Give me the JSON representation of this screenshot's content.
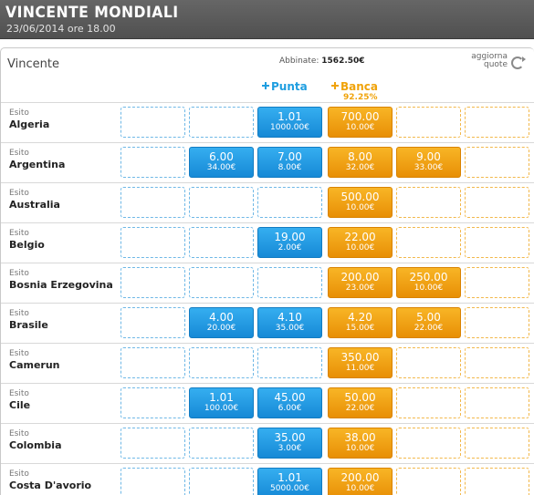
{
  "header": {
    "title": "VINCENTE MONDIALI",
    "subtitle": "23/06/2014 ore 18.00"
  },
  "market": {
    "label": "Vincente",
    "matched_label": "Abbinate:",
    "matched_value": "1562.50€",
    "refresh_label_line1": "aggiorna",
    "refresh_label_line2": "quote"
  },
  "columns": {
    "back_label": "Punta",
    "lay_label": "Banca",
    "lay_percent": "92.25%"
  },
  "colors": {
    "back": "#1f9ee0",
    "lay": "#f0a30a",
    "header_bg": "#5a5a5a"
  },
  "runners": [
    {
      "label": "Esito",
      "name": "Algeria",
      "back": [
        null,
        null,
        {
          "odds": "1.01",
          "stake": "1000.00€"
        }
      ],
      "lay": [
        {
          "odds": "700.00",
          "stake": "10.00€"
        },
        null,
        null
      ]
    },
    {
      "label": "Esito",
      "name": "Argentina",
      "back": [
        null,
        {
          "odds": "6.00",
          "stake": "34.00€"
        },
        {
          "odds": "7.00",
          "stake": "8.00€"
        }
      ],
      "lay": [
        {
          "odds": "8.00",
          "stake": "32.00€"
        },
        {
          "odds": "9.00",
          "stake": "33.00€"
        },
        null
      ]
    },
    {
      "label": "Esito",
      "name": "Australia",
      "back": [
        null,
        null,
        null
      ],
      "lay": [
        {
          "odds": "500.00",
          "stake": "10.00€"
        },
        null,
        null
      ]
    },
    {
      "label": "Esito",
      "name": "Belgio",
      "back": [
        null,
        null,
        {
          "odds": "19.00",
          "stake": "2.00€"
        }
      ],
      "lay": [
        {
          "odds": "22.00",
          "stake": "10.00€"
        },
        null,
        null
      ]
    },
    {
      "label": "Esito",
      "name": "Bosnia Erzegovina",
      "back": [
        null,
        null,
        null
      ],
      "lay": [
        {
          "odds": "200.00",
          "stake": "23.00€"
        },
        {
          "odds": "250.00",
          "stake": "10.00€"
        },
        null
      ]
    },
    {
      "label": "Esito",
      "name": "Brasile",
      "back": [
        null,
        {
          "odds": "4.00",
          "stake": "20.00€"
        },
        {
          "odds": "4.10",
          "stake": "35.00€"
        }
      ],
      "lay": [
        {
          "odds": "4.20",
          "stake": "15.00€"
        },
        {
          "odds": "5.00",
          "stake": "22.00€"
        },
        null
      ]
    },
    {
      "label": "Esito",
      "name": "Camerun",
      "back": [
        null,
        null,
        null
      ],
      "lay": [
        {
          "odds": "350.00",
          "stake": "11.00€"
        },
        null,
        null
      ]
    },
    {
      "label": "Esito",
      "name": "Cile",
      "back": [
        null,
        {
          "odds": "1.01",
          "stake": "100.00€"
        },
        {
          "odds": "45.00",
          "stake": "6.00€"
        }
      ],
      "lay": [
        {
          "odds": "50.00",
          "stake": "22.00€"
        },
        null,
        null
      ]
    },
    {
      "label": "Esito",
      "name": "Colombia",
      "back": [
        null,
        null,
        {
          "odds": "35.00",
          "stake": "3.00€"
        }
      ],
      "lay": [
        {
          "odds": "38.00",
          "stake": "10.00€"
        },
        null,
        null
      ]
    },
    {
      "label": "Esito",
      "name": "Costa D'avorio",
      "back": [
        null,
        null,
        {
          "odds": "1.01",
          "stake": "5000.00€"
        }
      ],
      "lay": [
        {
          "odds": "200.00",
          "stake": "10.00€"
        },
        null,
        null
      ]
    }
  ]
}
